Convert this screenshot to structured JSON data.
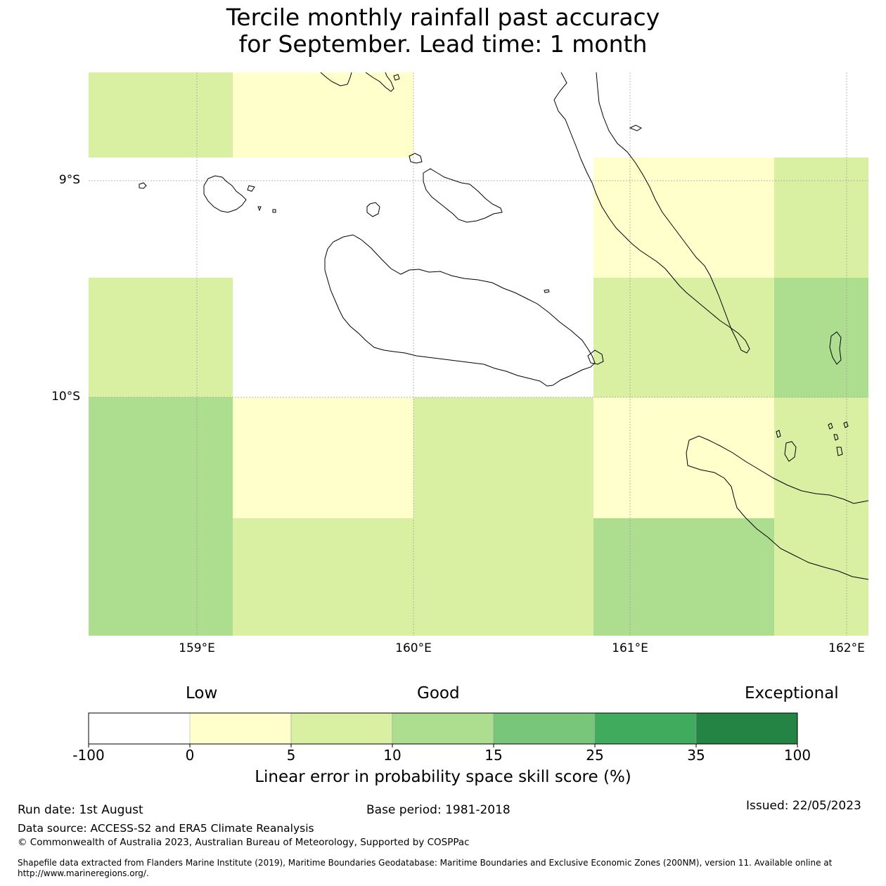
{
  "title_line1": "Tercile monthly rainfall past accuracy",
  "title_line2": "for September. Lead time: 1 month",
  "axes": {
    "x_ticks": [
      "159°E",
      "160°E",
      "161°E",
      "162°E"
    ],
    "y_ticks": [
      "9°S",
      "10°S"
    ]
  },
  "colorbar": {
    "categories": [
      "Low",
      "Good",
      "Exceptional"
    ],
    "ticks": [
      "-100",
      "0",
      "5",
      "10",
      "15",
      "25",
      "35",
      "100"
    ],
    "colors": [
      "#ffffff",
      "#ffffcc",
      "#d9f0a3",
      "#addd8e",
      "#78c679",
      "#41ab5d",
      "#238443"
    ],
    "label": "Linear error in probability space skill score (%)"
  },
  "grid_colors": {
    "white": "#ffffff",
    "yellow": "#ffffcc",
    "lightgreen": "#d9f0a3",
    "green": "#addd8e"
  },
  "footer": {
    "run_date": "Run date: 1st August",
    "base_period": "Base period: 1981-2018",
    "issued": "Issued: 22/05/2023",
    "data_source": "Data source: ACCESS-S2 and ERA5 Climate Reanalysis",
    "copyright": "© Commonwealth of Australia 2023, Australian Bureau of Meteorology, Supported by COSPPac",
    "shapefile": "Shapefile data extracted from Flanders Marine Institute (2019), Maritime Boundaries Geodatabase: Maritime Boundaries and Exclusive Economic Zones (200NM), version 11. Available online at http://www.marineregions.org/."
  }
}
